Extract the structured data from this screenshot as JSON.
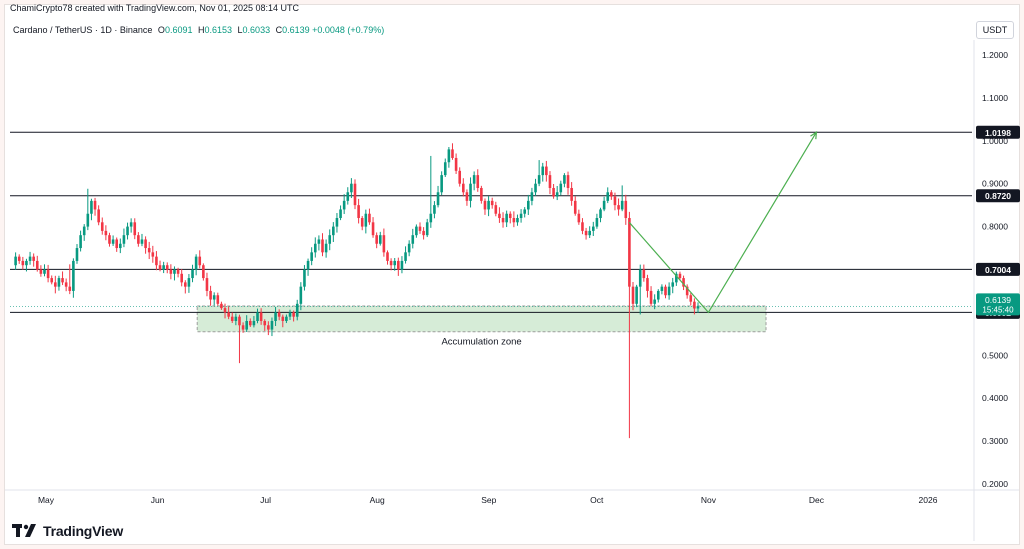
{
  "header": {
    "credit": "ChamiCrypto78 created with TradingView.com, Nov 01, 2025 08:14 UTC",
    "pair": "Cardano / TetherUS · 1D · Binance",
    "o_label": "O",
    "o_value": "0.6091",
    "h_label": "H",
    "h_value": "0.6153",
    "l_label": "L",
    "l_value": "0.6033",
    "c_label": "C",
    "c_value": "0.6139",
    "change": "+0.0048 (+0.79%)",
    "currency": "USDT"
  },
  "brand": {
    "logo_text": "TradingView"
  },
  "chart_data": {
    "type": "candlestick",
    "title": "Cardano / TetherUS · 1D · Binance",
    "x_ticks": [
      "May",
      "Jun",
      "Jul",
      "Aug",
      "Sep",
      "Oct",
      "Nov",
      "Dec",
      "2026"
    ],
    "y_ticks": [
      "1.2000",
      "1.1000",
      "1.0000",
      "0.9000",
      "0.8000",
      "0.7000",
      "0.6000",
      "0.5000",
      "0.4000",
      "0.3000",
      "0.2000"
    ],
    "y_range": [
      0.2,
      1.2
    ],
    "x_range": [
      "2025-04-21",
      "2026-01-31"
    ],
    "levels": [
      {
        "value": 1.0198,
        "label": "1.0198"
      },
      {
        "value": 0.872,
        "label": "0.8720"
      },
      {
        "value": 0.7004,
        "label": "0.7004"
      },
      {
        "value": 0.6002,
        "label": "0.6002"
      }
    ],
    "current_price": {
      "value": 0.6139,
      "label": "0.6139",
      "countdown": "15:45:40",
      "color": "#089981"
    },
    "zone": {
      "label": "Accumulation zone",
      "from": "2025-06-12",
      "to": "2025-11-17",
      "low": 0.555,
      "high": 0.615,
      "color": "#c8e6c9"
    },
    "projection": [
      {
        "date": "2025-10-10",
        "price": 0.81
      },
      {
        "date": "2025-11-01",
        "price": 0.6
      },
      {
        "date": "2025-12-01",
        "price": 1.02
      }
    ],
    "colors": {
      "up": "#089981",
      "down": "#f23645",
      "level": "#131722",
      "projection": "#4caf50"
    },
    "closes": [
      0.71,
      0.73,
      0.72,
      0.71,
      0.72,
      0.73,
      0.72,
      0.7,
      0.69,
      0.7,
      0.68,
      0.67,
      0.66,
      0.68,
      0.67,
      0.66,
      0.65,
      0.72,
      0.75,
      0.78,
      0.8,
      0.83,
      0.86,
      0.84,
      0.81,
      0.79,
      0.78,
      0.76,
      0.77,
      0.75,
      0.76,
      0.78,
      0.8,
      0.81,
      0.78,
      0.76,
      0.77,
      0.75,
      0.74,
      0.73,
      0.71,
      0.7,
      0.71,
      0.7,
      0.69,
      0.7,
      0.69,
      0.67,
      0.66,
      0.68,
      0.7,
      0.73,
      0.71,
      0.68,
      0.65,
      0.63,
      0.64,
      0.62,
      0.61,
      0.6,
      0.59,
      0.58,
      0.59,
      0.57,
      0.56,
      0.58,
      0.57,
      0.58,
      0.6,
      0.58,
      0.57,
      0.56,
      0.58,
      0.6,
      0.59,
      0.58,
      0.59,
      0.6,
      0.59,
      0.62,
      0.66,
      0.7,
      0.72,
      0.74,
      0.76,
      0.77,
      0.74,
      0.76,
      0.78,
      0.8,
      0.82,
      0.84,
      0.86,
      0.88,
      0.9,
      0.85,
      0.82,
      0.8,
      0.83,
      0.81,
      0.78,
      0.76,
      0.78,
      0.74,
      0.72,
      0.71,
      0.72,
      0.7,
      0.72,
      0.74,
      0.76,
      0.78,
      0.8,
      0.79,
      0.78,
      0.81,
      0.83,
      0.85,
      0.88,
      0.92,
      0.95,
      0.98,
      0.96,
      0.93,
      0.9,
      0.88,
      0.86,
      0.9,
      0.92,
      0.89,
      0.86,
      0.84,
      0.86,
      0.85,
      0.83,
      0.82,
      0.81,
      0.83,
      0.82,
      0.81,
      0.82,
      0.83,
      0.84,
      0.86,
      0.88,
      0.9,
      0.92,
      0.94,
      0.92,
      0.89,
      0.87,
      0.88,
      0.9,
      0.92,
      0.89,
      0.86,
      0.83,
      0.81,
      0.79,
      0.78,
      0.79,
      0.8,
      0.82,
      0.84,
      0.86,
      0.88,
      0.87,
      0.85,
      0.84,
      0.86,
      0.82,
      0.66,
      0.62,
      0.66,
      0.7,
      0.68,
      0.65,
      0.62,
      0.63,
      0.65,
      0.66,
      0.64,
      0.66,
      0.67,
      0.69,
      0.68,
      0.66,
      0.64,
      0.625,
      0.6091,
      0.6139
    ]
  }
}
